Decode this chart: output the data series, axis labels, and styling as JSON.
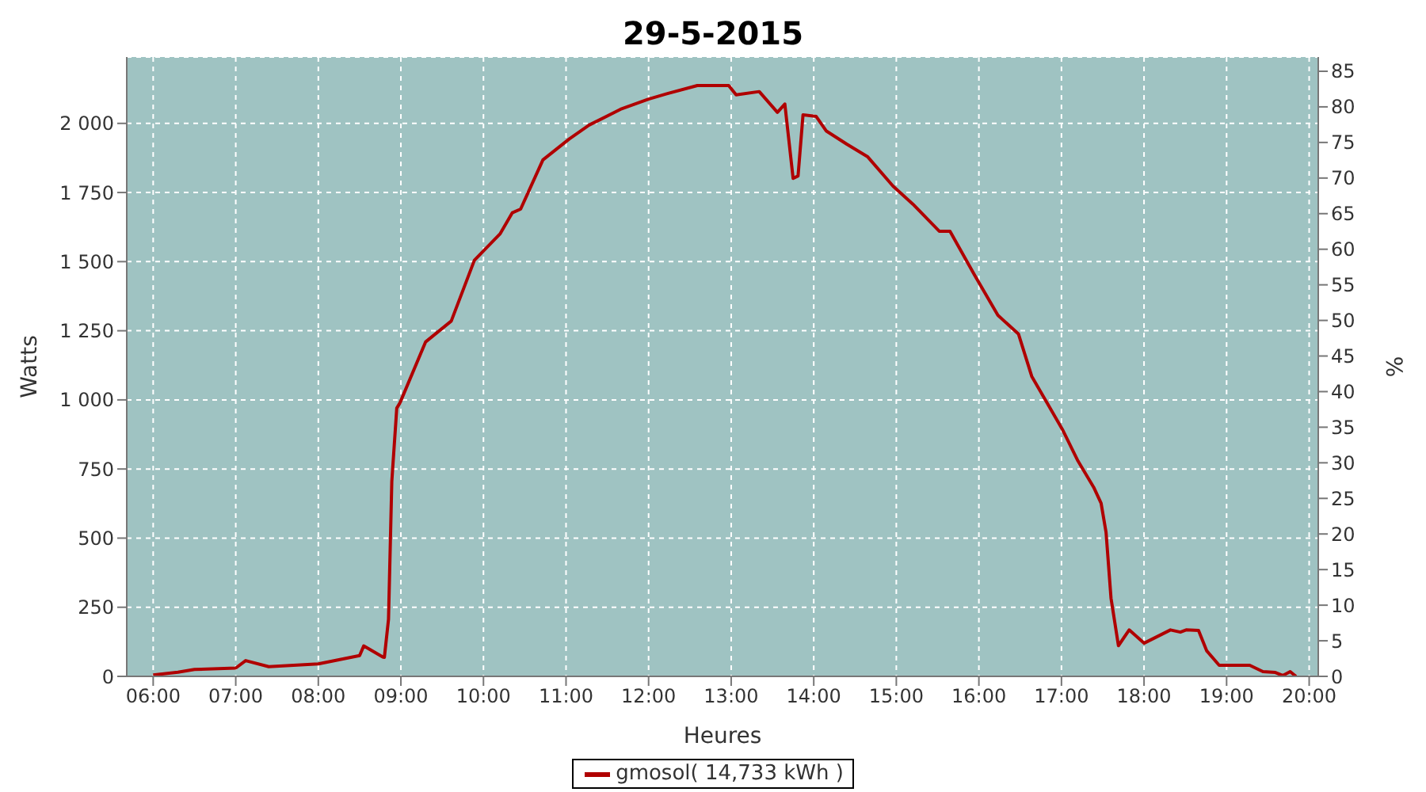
{
  "chart_data": {
    "type": "line",
    "title": "29-5-2015",
    "xlabel": "Heures",
    "ylabel": "Watts",
    "y2label": "%",
    "x": [
      6.0,
      6.3,
      6.5,
      7.0,
      7.12,
      7.4,
      8.0,
      8.5,
      8.55,
      8.78,
      8.8,
      8.85,
      8.89,
      8.95,
      8.99,
      9.3,
      9.61,
      9.89,
      10.2,
      10.35,
      10.45,
      10.72,
      11.04,
      11.28,
      11.66,
      12.0,
      12.22,
      12.59,
      12.97,
      13.06,
      13.34,
      13.56,
      13.65,
      13.75,
      13.81,
      13.87,
      14.03,
      14.15,
      14.4,
      14.65,
      14.96,
      15.2,
      15.52,
      15.65,
      15.95,
      16.23,
      16.48,
      16.64,
      17.01,
      17.2,
      17.39,
      17.48,
      17.54,
      17.6,
      17.69,
      17.82,
      18.0,
      18.32,
      18.44,
      18.51,
      18.66,
      18.76,
      18.91,
      19.0,
      19.28,
      19.44,
      19.59,
      19.68,
      19.77,
      19.84
    ],
    "series": [
      {
        "name": "gmosol( 14,733 kWh )",
        "color": "#b00000",
        "values": [
          5,
          15,
          25,
          30,
          57,
          35,
          45,
          75,
          110,
          70,
          69,
          206,
          705,
          970,
          990,
          1210,
          1285,
          1505,
          1600,
          1677,
          1690,
          1868,
          1944,
          1994,
          2051,
          2088,
          2107,
          2137,
          2137,
          2103,
          2115,
          2040,
          2070,
          1801,
          1810,
          2031,
          2025,
          1973,
          1925,
          1880,
          1773,
          1708,
          1610,
          1610,
          1450,
          1306,
          1238,
          1085,
          894,
          779,
          684,
          626,
          521,
          283,
          111,
          168,
          120,
          168,
          160,
          168,
          166,
          92,
          40,
          40,
          40,
          17,
          14,
          3,
          17,
          0
        ]
      }
    ],
    "xlim": [
      5.68,
      20.11
    ],
    "xticks": [
      {
        "value": 6,
        "label": "06:00"
      },
      {
        "value": 7,
        "label": "07:00"
      },
      {
        "value": 8,
        "label": "08:00"
      },
      {
        "value": 9,
        "label": "09:00"
      },
      {
        "value": 10,
        "label": "10:00"
      },
      {
        "value": 11,
        "label": "11:00"
      },
      {
        "value": 12,
        "label": "12:00"
      },
      {
        "value": 13,
        "label": "13:00"
      },
      {
        "value": 14,
        "label": "14:00"
      },
      {
        "value": 15,
        "label": "15:00"
      },
      {
        "value": 16,
        "label": "16:00"
      },
      {
        "value": 17,
        "label": "17:00"
      },
      {
        "value": 18,
        "label": "18:00"
      },
      {
        "value": 19,
        "label": "19:00"
      },
      {
        "value": 20,
        "label": "20:00"
      }
    ],
    "ylim": [
      0,
      2240
    ],
    "yticks": [
      0,
      250,
      500,
      750,
      {
        "value": 1000,
        "label": "1 000"
      },
      {
        "value": 1250,
        "label": "1 250"
      },
      {
        "value": 1500,
        "label": "1 500"
      },
      {
        "value": 1750,
        "label": "1 750"
      },
      {
        "value": 2000,
        "label": "2 000"
      }
    ],
    "y2lim": [
      0,
      87
    ],
    "y2ticks": [
      0,
      5,
      10,
      15,
      20,
      25,
      30,
      35,
      40,
      45,
      50,
      55,
      60,
      65,
      70,
      75,
      80,
      85
    ],
    "grid": true,
    "legend": "bottom",
    "marker": "none",
    "line_style": "solid"
  }
}
